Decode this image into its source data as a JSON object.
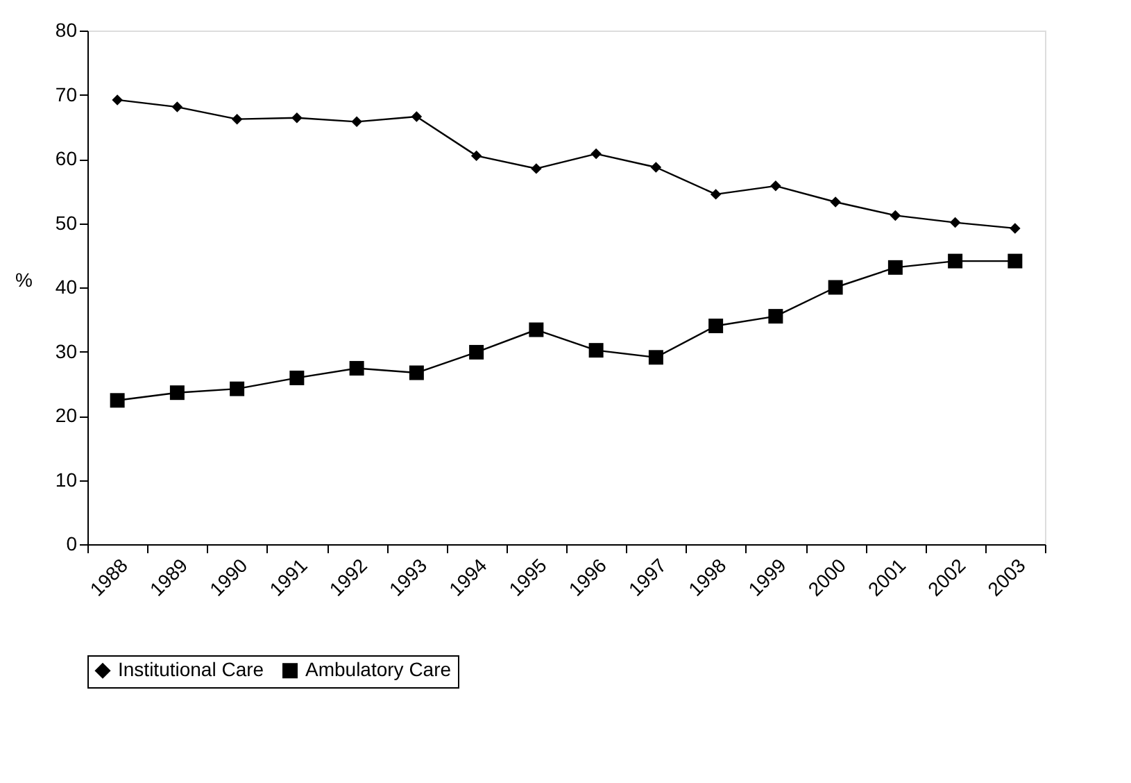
{
  "chart_data": {
    "type": "line",
    "ylabel": "%",
    "categories": [
      "1988",
      "1989",
      "1990",
      "1991",
      "1992",
      "1993",
      "1994",
      "1995",
      "1996",
      "1997",
      "1998",
      "1999",
      "2000",
      "2001",
      "2002",
      "2003"
    ],
    "series": [
      {
        "name": "Institutional Care",
        "color": "#000000",
        "marker": "diamond",
        "values": [
          69.2,
          68.1,
          66.2,
          66.4,
          65.8,
          66.6,
          60.5,
          58.5,
          60.8,
          58.7,
          54.5,
          55.8,
          53.3,
          51.2,
          50.1,
          49.2
        ]
      },
      {
        "name": "Ambulatory Care",
        "color": "#000000",
        "marker": "square",
        "values": [
          22.4,
          23.6,
          24.2,
          25.9,
          27.4,
          26.7,
          29.9,
          33.4,
          30.2,
          29.1,
          34.0,
          35.5,
          40.0,
          43.1,
          44.1,
          44.1
        ]
      }
    ],
    "ylim": [
      0,
      80
    ],
    "yticks": [
      0,
      10,
      20,
      30,
      40,
      50,
      60,
      70,
      80
    ],
    "grid": false,
    "legend": "bottom",
    "line_style": "solid"
  }
}
